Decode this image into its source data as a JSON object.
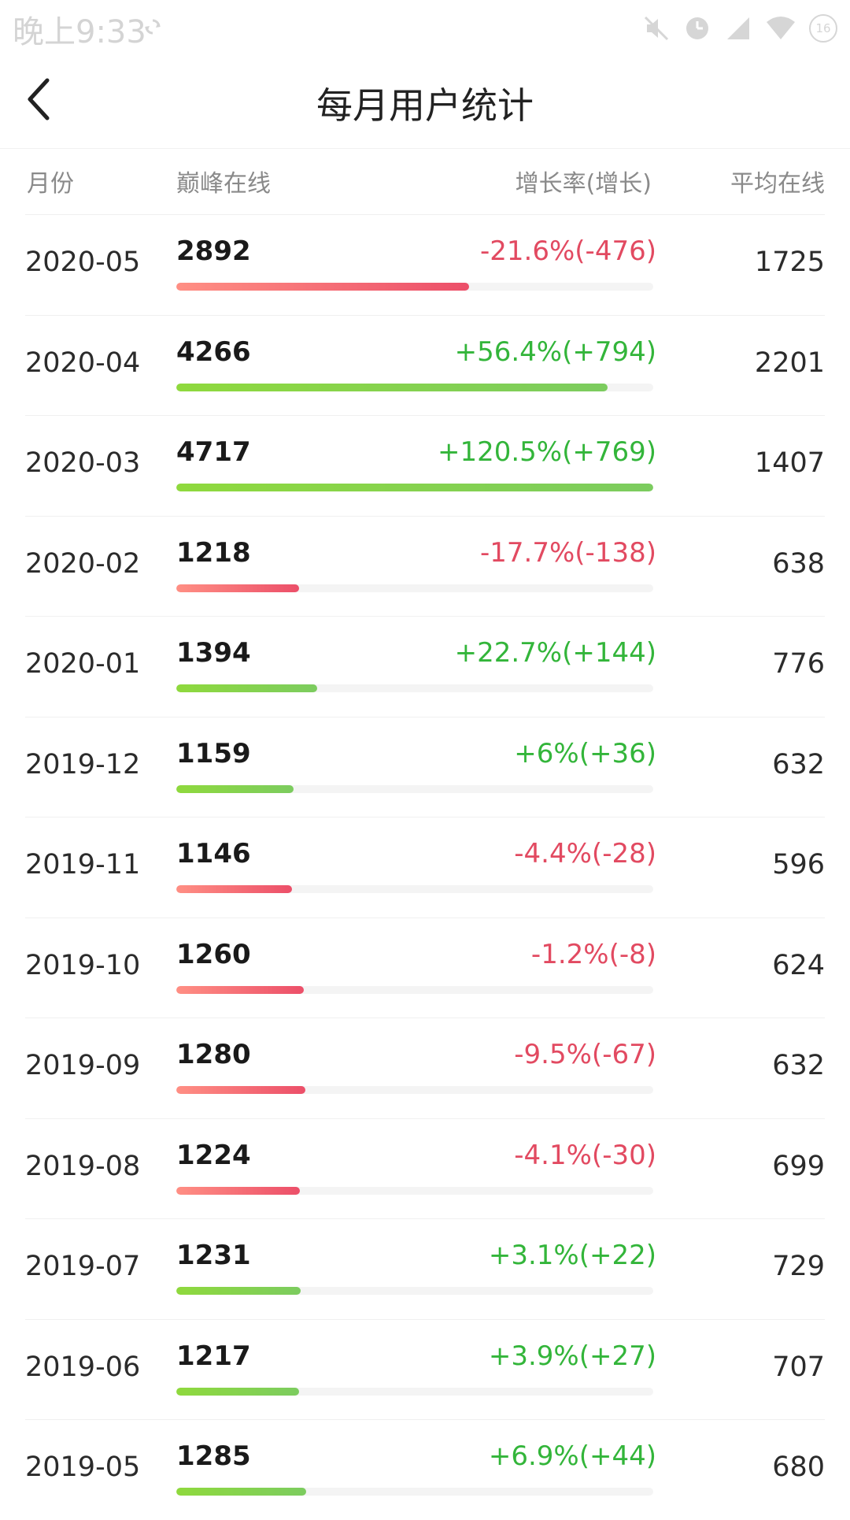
{
  "status_bar": {
    "time": "晚上9:33",
    "icons": [
      "sync-icon",
      "mute-icon",
      "alarm-icon",
      "signal-icon",
      "wifi-icon",
      "battery-icon"
    ],
    "battery": "16"
  },
  "header": {
    "back_icon": "chevron-left-icon",
    "title": "每月用户统计"
  },
  "columns": {
    "month": "月份",
    "peak": "巅峰在线",
    "growth": "增长率(增长)",
    "avg": "平均在线"
  },
  "colors": {
    "up": "#33b53a",
    "down": "#e24a61",
    "bar_up_start": "#8fd93d",
    "bar_up_end": "#7ccc5f",
    "bar_down_start": "#ff8f84",
    "bar_down_end": "#ec4f69"
  },
  "rows": [
    {
      "month": "2020-05",
      "peak": "2892",
      "growth": "-21.6%(-476)",
      "trend": "down",
      "avg": "1725",
      "peak_value": 2892
    },
    {
      "month": "2020-04",
      "peak": "4266",
      "growth": "+56.4%(+794)",
      "trend": "up",
      "avg": "2201",
      "peak_value": 4266
    },
    {
      "month": "2020-03",
      "peak": "4717",
      "growth": "+120.5%(+769)",
      "trend": "up",
      "avg": "1407",
      "peak_value": 4717
    },
    {
      "month": "2020-02",
      "peak": "1218",
      "growth": "-17.7%(-138)",
      "trend": "down",
      "avg": "638",
      "peak_value": 1218
    },
    {
      "month": "2020-01",
      "peak": "1394",
      "growth": "+22.7%(+144)",
      "trend": "up",
      "avg": "776",
      "peak_value": 1394
    },
    {
      "month": "2019-12",
      "peak": "1159",
      "growth": "+6%(+36)",
      "trend": "up",
      "avg": "632",
      "peak_value": 1159
    },
    {
      "month": "2019-11",
      "peak": "1146",
      "growth": "-4.4%(-28)",
      "trend": "down",
      "avg": "596",
      "peak_value": 1146
    },
    {
      "month": "2019-10",
      "peak": "1260",
      "growth": "-1.2%(-8)",
      "trend": "down",
      "avg": "624",
      "peak_value": 1260
    },
    {
      "month": "2019-09",
      "peak": "1280",
      "growth": "-9.5%(-67)",
      "trend": "down",
      "avg": "632",
      "peak_value": 1280
    },
    {
      "month": "2019-08",
      "peak": "1224",
      "growth": "-4.1%(-30)",
      "trend": "down",
      "avg": "699",
      "peak_value": 1224
    },
    {
      "month": "2019-07",
      "peak": "1231",
      "growth": "+3.1%(+22)",
      "trend": "up",
      "avg": "729",
      "peak_value": 1231
    },
    {
      "month": "2019-06",
      "peak": "1217",
      "growth": "+3.9%(+27)",
      "trend": "up",
      "avg": "707",
      "peak_value": 1217
    },
    {
      "month": "2019-05",
      "peak": "1285",
      "growth": "+6.9%(+44)",
      "trend": "up",
      "avg": "680",
      "peak_value": 1285
    }
  ]
}
